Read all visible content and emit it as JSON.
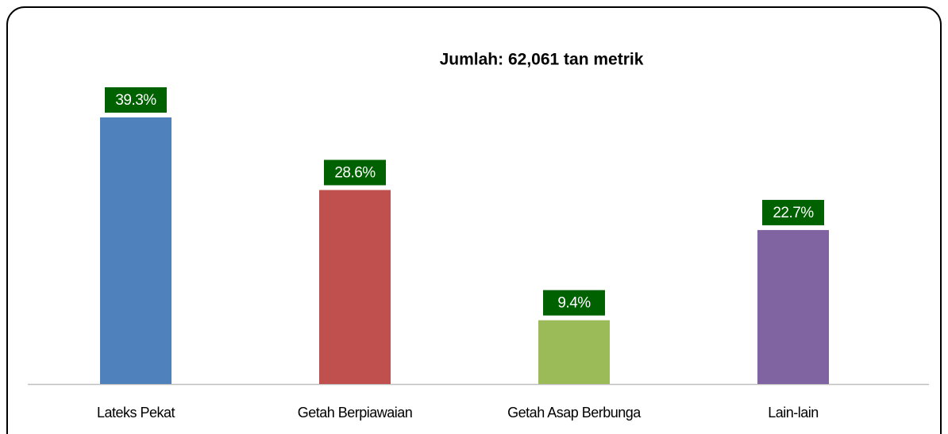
{
  "chart_data": {
    "type": "bar",
    "title": "Jumlah: 62,061 tan metrik",
    "categories": [
      "Lateks Pekat",
      "Getah Berpiawaian",
      "Getah Asap Berbunga",
      "Lain-lain"
    ],
    "values": [
      39.3,
      28.6,
      9.4,
      22.7
    ],
    "value_labels": [
      "39.3%",
      "28.6%",
      "9.4%",
      "22.7%"
    ],
    "colors": [
      "#4f81bd",
      "#c0504d",
      "#9bbb59",
      "#8064a2"
    ],
    "label_color": "#006100"
  }
}
